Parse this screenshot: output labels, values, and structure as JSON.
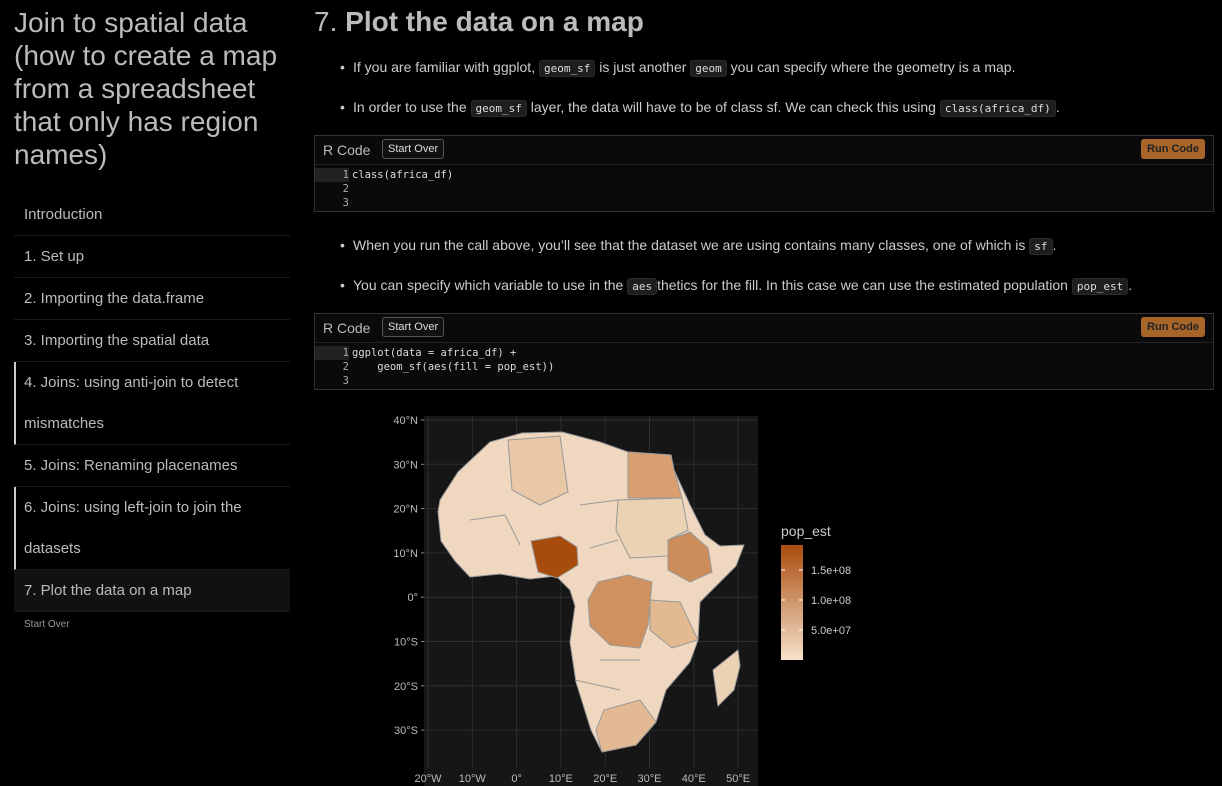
{
  "sidebar": {
    "title": "Join to spatial data (how to create a map from a spreadsheet that only has region names)",
    "toc": [
      "Introduction",
      "1. Set up",
      "2. Importing the data.frame",
      "3. Importing the spatial data",
      "4. Joins: using anti-join to detect mismatches",
      "5. Joins: Renaming placenames",
      "6. Joins: using left-join to join the datasets",
      "7. Plot the data on a map"
    ],
    "start_over": "Start Over"
  },
  "section": {
    "number": "7.",
    "title": "Plot the data on a map"
  },
  "bullets_1": [
    [
      {
        "text": "If you are familiar with ggplot, "
      },
      {
        "code": "geom_sf"
      },
      {
        "text": " is just another "
      },
      {
        "code": "geom"
      },
      {
        "text": " you can specify where the geometry is a map."
      }
    ],
    [
      {
        "text": "In order to use the "
      },
      {
        "code": "geom_sf"
      },
      {
        "text": " layer, the data will have to be of class sf. We can check this using "
      },
      {
        "code": "class(africa_df)"
      },
      {
        "text": "."
      }
    ]
  ],
  "bullets_2": [
    [
      {
        "text": "When you run the call above, you’ll see that the dataset we are using contains many classes, one of which is "
      },
      {
        "code": "sf"
      },
      {
        "text": "."
      }
    ],
    [
      {
        "text": "You can specify which variable to use in the "
      },
      {
        "code": "aes"
      },
      {
        "text": "thetics for the fill. In this case we can use the estimated population "
      },
      {
        "code": "pop_est"
      },
      {
        "text": "."
      }
    ]
  ],
  "exercises": [
    {
      "label": "R Code",
      "start_over": "Start Over",
      "run": "Run Code",
      "line_numbers": [
        "1",
        "2",
        "3"
      ],
      "code": [
        "class(africa_df)"
      ]
    },
    {
      "label": "R Code",
      "start_over": "Start Over",
      "run": "Run Code",
      "line_numbers": [
        "1",
        "2",
        "3"
      ],
      "code": [
        "ggplot(data = africa_df) +",
        "    geom_sf(aes(fill = pop_est))"
      ]
    }
  ],
  "map": {
    "legend_title": "pop_est",
    "legend_labels": [
      "1.5e+08",
      "1.0e+08",
      "5.0e+07"
    ],
    "y_labels": [
      "40°N",
      "30°N",
      "20°N",
      "10°N",
      "0°",
      "10°S",
      "20°S",
      "30°S"
    ],
    "x_labels": [
      "20°W",
      "10°W",
      "0°",
      "10°E",
      "20°E",
      "30°E",
      "40°E",
      "50°E"
    ]
  }
}
